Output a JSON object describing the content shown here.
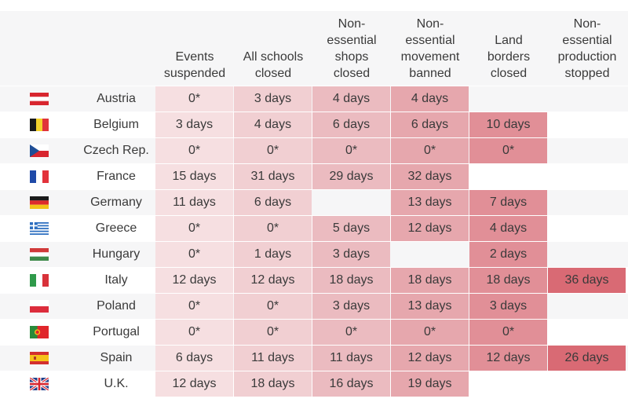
{
  "chart_data": {
    "type": "table",
    "columns": [
      "Events\nsuspended",
      "All schools\nclosed",
      "Non-\nessential\nshops\nclosed",
      "Non-\nessential\nmovement\nbanned",
      "Land\nborders\nclosed",
      "Non-\nessential\nproduction\nstopped"
    ],
    "column_colors": [
      "#f6dfe1",
      "#f1cfd2",
      "#ebbbc0",
      "#e6a7ad",
      "#e18f97",
      "#d96a74"
    ],
    "rows": [
      {
        "country": "Austria",
        "flag": "austria-flag",
        "values": [
          "0*",
          "3 days",
          "4 days",
          "4 days",
          "",
          ""
        ]
      },
      {
        "country": "Belgium",
        "flag": "belgium-flag",
        "values": [
          "3 days",
          "4 days",
          "6 days",
          "6 days",
          "10 days",
          ""
        ]
      },
      {
        "country": "Czech Rep.",
        "flag": "czech-flag",
        "values": [
          "0*",
          "0*",
          "0*",
          "0*",
          "0*",
          ""
        ]
      },
      {
        "country": "France",
        "flag": "france-flag",
        "values": [
          "15 days",
          "31 days",
          "29 days",
          "32 days",
          "",
          ""
        ]
      },
      {
        "country": "Germany",
        "flag": "germany-flag",
        "values": [
          "11 days",
          "6 days",
          "",
          "13 days",
          "7 days",
          ""
        ]
      },
      {
        "country": "Greece",
        "flag": "greece-flag",
        "values": [
          "0*",
          "0*",
          "5 days",
          "12 days",
          "4 days",
          ""
        ]
      },
      {
        "country": "Hungary",
        "flag": "hungary-flag",
        "values": [
          "0*",
          "1 days",
          "3 days",
          "",
          "2 days",
          ""
        ]
      },
      {
        "country": "Italy",
        "flag": "italy-flag",
        "values": [
          "12 days",
          "12 days",
          "18 days",
          "18 days",
          "18 days",
          "36 days"
        ]
      },
      {
        "country": "Poland",
        "flag": "poland-flag",
        "values": [
          "0*",
          "0*",
          "3 days",
          "13 days",
          "3 days",
          ""
        ]
      },
      {
        "country": "Portugal",
        "flag": "portugal-flag",
        "values": [
          "0*",
          "0*",
          "0*",
          "0*",
          "0*",
          ""
        ]
      },
      {
        "country": "Spain",
        "flag": "spain-flag",
        "values": [
          "6 days",
          "11 days",
          "11 days",
          "12 days",
          "12 days",
          "26 days"
        ]
      },
      {
        "country": "U.K.",
        "flag": "uk-flag",
        "values": [
          "12 days",
          "18 days",
          "16 days",
          "19 days",
          "",
          ""
        ]
      }
    ]
  }
}
